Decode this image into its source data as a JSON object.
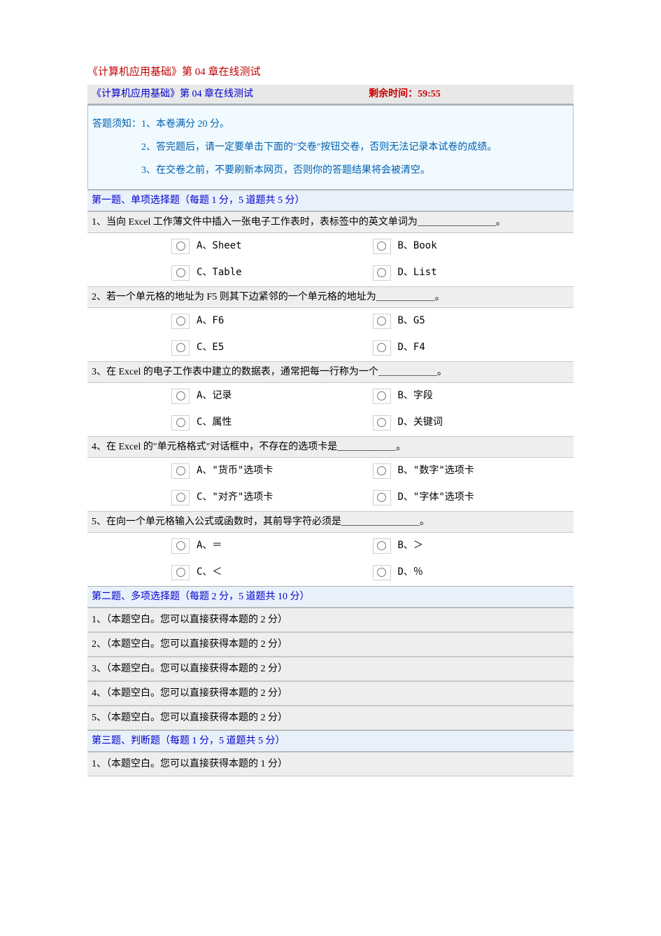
{
  "page_title": "《计算机应用基础》第 04 章在线测试",
  "timer_bar": {
    "left": "《计算机应用基础》第 04 章在线测试",
    "right": "剩余时间：59:55"
  },
  "notice": {
    "line1": "答题须知：1、本卷满分 20 分。",
    "line2": "2、答完题后，请一定要单击下面的\"交卷\"按钮交卷，否则无法记录本试卷的成绩。",
    "line3": "3、在交卷之前，不要刷新本网页，否则你的答题结果将会被清空。"
  },
  "sections": {
    "s1": {
      "header": "第一题、单项选择题（每题 1 分，5 道题共 5 分）",
      "questions": {
        "q1": {
          "text": "1、当向 Excel 工作薄文件中插入一张电子工作表时，表标签中的英文单词为＿＿＿＿＿＿＿＿。",
          "a": "A、Sheet",
          "b": "B、Book",
          "c": "C、Table",
          "d": "D、List"
        },
        "q2": {
          "text": "2、若一个单元格的地址为 F5 则其下边紧邻的一个单元格的地址为＿＿＿＿＿＿。",
          "a": "A、F6",
          "b": "B、G5",
          "c": "C、E5",
          "d": "D、F4"
        },
        "q3": {
          "text": "3、在 Excel 的电子工作表中建立的数据表，通常把每一行称为一个＿＿＿＿＿＿。",
          "a": "A、记录",
          "b": "B、字段",
          "c": "C、属性",
          "d": "D、关键词"
        },
        "q4": {
          "text": "4、在 Excel 的\"单元格格式\"对话框中，不存在的选项卡是＿＿＿＿＿＿。",
          "a": "A、\"货币\"选项卡",
          "b": "B、\"数字\"选项卡",
          "c": "C、\"对齐\"选项卡",
          "d": "D、\"字体\"选项卡"
        },
        "q5": {
          "text": "5、在向一个单元格输入公式或函数时，其前导字符必须是＿＿＿＿＿＿＿＿。",
          "a": "A、＝",
          "b": "B、＞",
          "c": "C、＜",
          "d": "D、％"
        }
      }
    },
    "s2": {
      "header": "第二题、多项选择题（每题 2 分，5 道题共 10 分）",
      "rows": {
        "r1": "1、（本题空白。您可以直接获得本题的 2 分）",
        "r2": "2、（本题空白。您可以直接获得本题的 2 分）",
        "r3": "3、（本题空白。您可以直接获得本题的 2 分）",
        "r4": "4、（本题空白。您可以直接获得本题的 2 分）",
        "r5": "5、（本题空白。您可以直接获得本题的 2 分）"
      }
    },
    "s3": {
      "header": "第三题、判断题（每题 1 分，5 道题共 5 分）",
      "rows": {
        "r1": "1、（本题空白。您可以直接获得本题的 1 分）"
      }
    }
  },
  "colors": {
    "title": "#c00000",
    "link_blue": "#0000cc",
    "notice_blue": "#0060b0",
    "timer_red": "#cc0000",
    "section_bg": "#e8f0fa",
    "question_bg": "#eeeeee",
    "notice_bg": "#f0faff",
    "timer_bg": "#e8e8e8"
  }
}
